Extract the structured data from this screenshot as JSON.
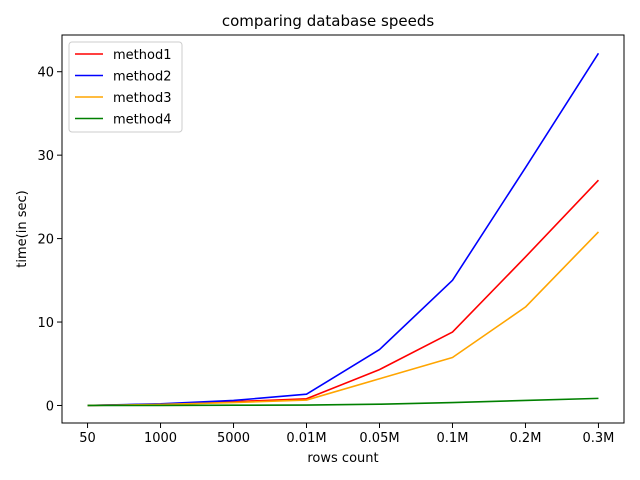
{
  "chart_data": {
    "type": "line",
    "title": "comparing database speeds",
    "xlabel": "rows count",
    "ylabel": "time(in sec)",
    "categories": [
      "50",
      "1000",
      "5000",
      "0.01M",
      "0.05M",
      "0.1M",
      "0.2M",
      "0.3M"
    ],
    "ylim": [
      -2.1,
      44.4
    ],
    "yticks": [
      0,
      10,
      20,
      30,
      40
    ],
    "grid": false,
    "legend": "top-left",
    "series": [
      {
        "name": "method1",
        "color": "#ff0000",
        "values": [
          0.0,
          0.15,
          0.45,
          0.8,
          4.3,
          8.8,
          17.8,
          27.0
        ]
      },
      {
        "name": "method2",
        "color": "#0000ff",
        "values": [
          0.0,
          0.2,
          0.6,
          1.35,
          6.7,
          15.0,
          28.5,
          42.2
        ]
      },
      {
        "name": "method3",
        "color": "#ffa500",
        "values": [
          0.0,
          0.12,
          0.35,
          0.65,
          3.2,
          5.75,
          11.8,
          20.8
        ]
      },
      {
        "name": "method4",
        "color": "#008000",
        "values": [
          0.0,
          0.01,
          0.03,
          0.05,
          0.15,
          0.35,
          0.6,
          0.85
        ]
      }
    ]
  }
}
